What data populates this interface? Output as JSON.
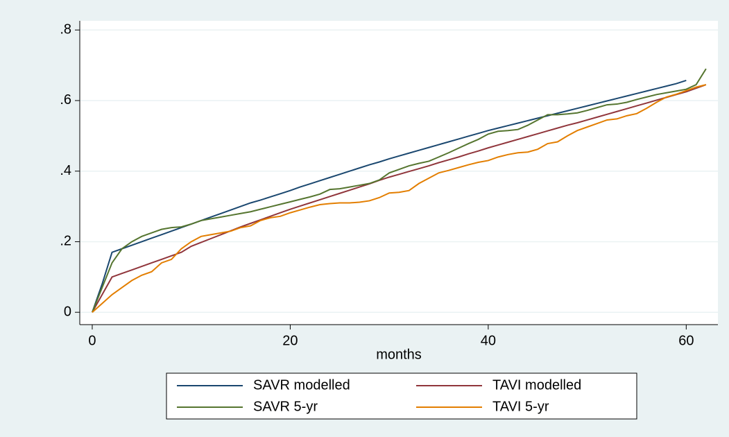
{
  "chart_data": {
    "type": "line",
    "xlabel": "months",
    "x": [
      0,
      1,
      2,
      3,
      4,
      5,
      6,
      7,
      8,
      9,
      10,
      11,
      12,
      13,
      14,
      15,
      16,
      17,
      18,
      19,
      20,
      21,
      22,
      23,
      24,
      25,
      26,
      27,
      28,
      29,
      30,
      31,
      32,
      33,
      34,
      35,
      36,
      37,
      38,
      39,
      40,
      41,
      42,
      43,
      44,
      45,
      46,
      47,
      48,
      49,
      50,
      51,
      52,
      53,
      54,
      55,
      56,
      57,
      58,
      59,
      60,
      61,
      62
    ],
    "series": [
      {
        "name": "SAVR modelled",
        "color": "#1a476f",
        "values": [
          0,
          0.08,
          0.17,
          0.18,
          0.19,
          0.2,
          0.21,
          0.22,
          0.23,
          0.24,
          0.25,
          0.26,
          0.27,
          0.28,
          0.29,
          0.3,
          0.31,
          0.318,
          0.327,
          0.336,
          0.345,
          0.355,
          0.364,
          0.373,
          0.382,
          0.391,
          0.4,
          0.409,
          0.418,
          0.426,
          0.435,
          0.443,
          0.451,
          0.459,
          0.467,
          0.475,
          0.483,
          0.491,
          0.499,
          0.507,
          0.515,
          0.522,
          0.529,
          0.536,
          0.543,
          0.55,
          0.557,
          0.564,
          0.571,
          0.578,
          0.585,
          0.592,
          0.599,
          0.606,
          0.613,
          0.62,
          0.627,
          0.634,
          0.641,
          0.648,
          0.657,
          null,
          null
        ]
      },
      {
        "name": "TAVI modelled",
        "color": "#90353b",
        "values": [
          0,
          0.05,
          0.1,
          0.11,
          0.12,
          0.13,
          0.14,
          0.15,
          0.16,
          0.17,
          0.187,
          0.198,
          0.209,
          0.22,
          0.231,
          0.242,
          0.252,
          0.262,
          0.272,
          0.282,
          0.292,
          0.301,
          0.31,
          0.319,
          0.328,
          0.337,
          0.346,
          0.355,
          0.364,
          0.374,
          0.383,
          0.391,
          0.399,
          0.407,
          0.415,
          0.424,
          0.432,
          0.44,
          0.449,
          0.457,
          0.466,
          0.474,
          0.482,
          0.49,
          0.498,
          0.506,
          0.514,
          0.522,
          0.53,
          0.537,
          0.545,
          0.553,
          0.561,
          0.569,
          0.577,
          0.585,
          0.593,
          0.601,
          0.609,
          0.617,
          0.625,
          0.635,
          0.645
        ]
      },
      {
        "name": "SAVR 5-yr",
        "color": "#55752f",
        "values": [
          0,
          0.07,
          0.14,
          0.18,
          0.2,
          0.215,
          0.225,
          0.235,
          0.24,
          0.242,
          0.25,
          0.26,
          0.265,
          0.27,
          0.275,
          0.28,
          0.285,
          0.292,
          0.299,
          0.306,
          0.313,
          0.32,
          0.327,
          0.335,
          0.348,
          0.35,
          0.355,
          0.36,
          0.365,
          0.375,
          0.395,
          0.405,
          0.415,
          0.422,
          0.428,
          0.44,
          0.452,
          0.465,
          0.478,
          0.49,
          0.505,
          0.513,
          0.515,
          0.518,
          0.53,
          0.545,
          0.56,
          0.56,
          0.562,
          0.565,
          0.572,
          0.58,
          0.588,
          0.59,
          0.595,
          0.603,
          0.61,
          0.617,
          0.622,
          0.627,
          0.632,
          0.645,
          0.69
        ]
      },
      {
        "name": "TAVI 5-yr",
        "color": "#e37e00",
        "values": [
          0,
          0.025,
          0.05,
          0.07,
          0.09,
          0.105,
          0.115,
          0.14,
          0.15,
          0.18,
          0.2,
          0.215,
          0.22,
          0.225,
          0.23,
          0.24,
          0.245,
          0.26,
          0.268,
          0.272,
          0.282,
          0.29,
          0.298,
          0.305,
          0.308,
          0.31,
          0.31,
          0.312,
          0.316,
          0.325,
          0.338,
          0.34,
          0.345,
          0.365,
          0.38,
          0.395,
          0.402,
          0.41,
          0.418,
          0.425,
          0.43,
          0.44,
          0.447,
          0.452,
          0.454,
          0.462,
          0.478,
          0.483,
          0.5,
          0.515,
          0.525,
          0.535,
          0.545,
          0.548,
          0.557,
          0.563,
          0.578,
          0.595,
          0.61,
          0.618,
          0.628,
          0.638,
          0.645
        ]
      }
    ],
    "xlim": [
      -1.26,
      63.2
    ],
    "xticks": [
      0,
      20,
      40,
      60
    ],
    "ylim": [
      -0.035,
      0.826
    ],
    "yticks": [
      0,
      {
        "value": 0.2,
        "label": ".2"
      },
      {
        "value": 0.4,
        "label": ".4"
      },
      {
        "value": 0.6,
        "label": ".6"
      },
      {
        "value": 0.8,
        "label": ".8"
      }
    ],
    "grid": true,
    "legend": "bottom"
  }
}
